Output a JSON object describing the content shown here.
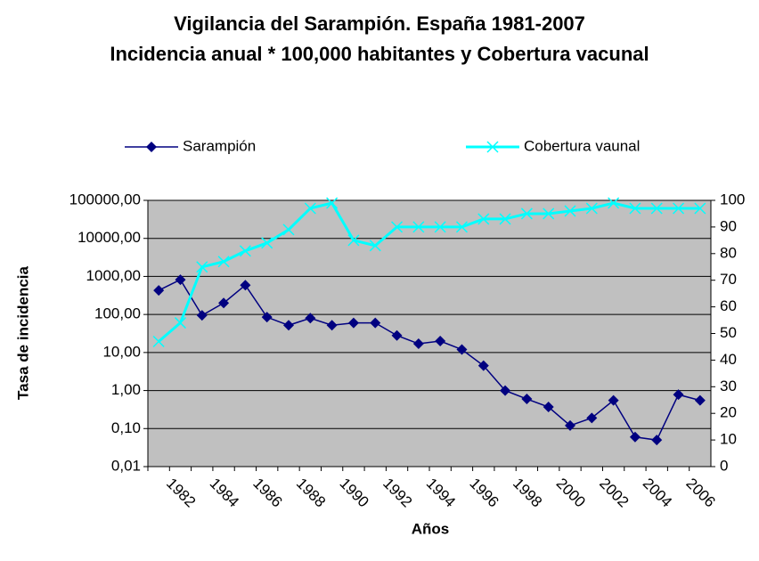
{
  "chart_data": {
    "type": "line",
    "title": [
      "Vigilancia del Sarampión. España 1981-2007",
      "Incidencia anual * 100,000 habitantes y Cobertura vacunal"
    ],
    "xlabel": "Años",
    "ylabel": "Tasa de incidencia",
    "categories": [
      null,
      "1982",
      null,
      "1984",
      null,
      "1986",
      null,
      "1988",
      null,
      "1990",
      null,
      "1992",
      null,
      "1994",
      null,
      "1996",
      null,
      "1998",
      null,
      "2000",
      null,
      "2002",
      null,
      "2004",
      null,
      "2006"
    ],
    "ylog": true,
    "ylim": [
      0.01,
      100000
    ],
    "yticks": [
      {
        "value": 0.01,
        "label": "0,01"
      },
      {
        "value": 0.1,
        "label": "0,10"
      },
      {
        "value": 1,
        "label": "1,00"
      },
      {
        "value": 10,
        "label": "10,00"
      },
      {
        "value": 100,
        "label": "100,00"
      },
      {
        "value": 1000,
        "label": "1000,00"
      },
      {
        "value": 10000,
        "label": "10000,00"
      },
      {
        "value": 100000,
        "label": "100000,00"
      }
    ],
    "y2lim": [
      0,
      100
    ],
    "y2ticks": [
      0,
      10,
      20,
      30,
      40,
      50,
      60,
      70,
      80,
      90,
      100
    ],
    "grid": true,
    "legend": "top",
    "series": [
      {
        "name": "Sarampión",
        "color": "#000080",
        "marker": "diamond",
        "values": [
          430,
          820,
          95,
          200,
          590,
          85,
          52,
          80,
          52,
          60,
          60,
          28,
          17,
          20,
          12,
          4.5,
          1.0,
          0.6,
          0.37,
          0.12,
          0.19,
          0.55,
          0.06,
          0.05,
          0.78,
          0.55
        ]
      },
      {
        "name": "Cobertura vaunal",
        "color": "#00ffff",
        "marker": "x",
        "axis": "y2",
        "values": [
          47,
          54,
          75,
          77,
          81,
          84,
          89,
          97,
          99,
          85,
          83,
          90,
          90,
          90,
          90,
          93,
          93,
          95,
          95,
          96,
          97,
          99,
          97,
          97,
          97,
          97
        ]
      }
    ]
  }
}
